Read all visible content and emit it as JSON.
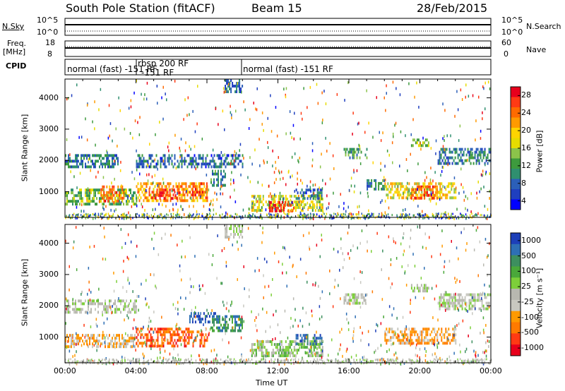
{
  "header": {
    "station": "South Pole Station (fitACF)",
    "beam": "Beam 15",
    "date": "28/Feb/2015"
  },
  "summary_panels": {
    "nsky_label": "N.Sky",
    "nsky_ticks": [
      "10^5",
      "10^0"
    ],
    "nsearch_label": "N.Search",
    "nsearch_ticks": [
      "10^5",
      "10^0"
    ],
    "freq_label": "Freq.",
    "freq_unit": "[MHz]",
    "freq_ticks": [
      "18",
      "8"
    ],
    "nave_label": "Nave",
    "nave_ticks": [
      "60",
      "0"
    ],
    "cpid_label": "CPID",
    "cpid_segments": [
      {
        "label": "normal (fast) -151 RF",
        "start": 0,
        "end": 4
      },
      {
        "label": "rbsp 200 RF",
        "start": 4,
        "end": 10
      },
      {
        "label": "normal (fast) -151 RF",
        "start": 10,
        "end": 24
      }
    ],
    "cpid_extra": "-151 RF"
  },
  "chart_data": [
    {
      "type": "heatmap",
      "title": "Power",
      "ylabel": "Slant Range [km]",
      "xlabel": "",
      "xlim": [
        0,
        24
      ],
      "ylim": [
        180,
        4600
      ],
      "yticks": [
        1000,
        2000,
        3000,
        4000
      ],
      "colorbar": {
        "label": "Power [dB]",
        "ticks": [
          "28",
          "24",
          "20",
          "16",
          "12",
          "8",
          "4"
        ],
        "colors": [
          "#e8001c",
          "#ff3a14",
          "#ff6a00",
          "#ff9a00",
          "#ffd400",
          "#e6dc00",
          "#8bc34a",
          "#3d9a3d",
          "#2f8f6f",
          "#2b5fb8",
          "#1f3fbf",
          "#0000ff"
        ]
      },
      "bands": [
        {
          "t0": 0.0,
          "t1": 3.0,
          "r0": 1800,
          "r1": 2200,
          "v": 7
        },
        {
          "t0": 0.0,
          "t1": 4.0,
          "r0": 600,
          "r1": 1100,
          "v": 12
        },
        {
          "t0": 2.0,
          "t1": 3.3,
          "r0": 700,
          "r1": 1200,
          "v": 24
        },
        {
          "t0": 4.0,
          "t1": 10.0,
          "r0": 1800,
          "r1": 2200,
          "v": 6
        },
        {
          "t0": 4.0,
          "t1": 8.0,
          "r0": 700,
          "r1": 1300,
          "v": 22
        },
        {
          "t0": 5.0,
          "t1": 6.5,
          "r0": 800,
          "r1": 1100,
          "v": 28
        },
        {
          "t0": 7.0,
          "t1": 8.0,
          "r0": 900,
          "r1": 1300,
          "v": 26
        },
        {
          "t0": 8.2,
          "t1": 9.0,
          "r0": 1200,
          "r1": 1700,
          "v": 8
        },
        {
          "t0": 9.0,
          "t1": 10.0,
          "r0": 4200,
          "r1": 4600,
          "v": 5
        },
        {
          "t0": 10.5,
          "t1": 14.5,
          "r0": 400,
          "r1": 900,
          "v": 16
        },
        {
          "t0": 11.5,
          "t1": 13.0,
          "r0": 400,
          "r1": 700,
          "v": 28
        },
        {
          "t0": 13.0,
          "t1": 14.5,
          "r0": 800,
          "r1": 1100,
          "v": 6
        },
        {
          "t0": 15.7,
          "t1": 17.0,
          "r0": 2100,
          "r1": 2400,
          "v": 10
        },
        {
          "t0": 17.0,
          "t1": 18.0,
          "r0": 1100,
          "r1": 1400,
          "v": 8
        },
        {
          "t0": 18.0,
          "t1": 22.0,
          "r0": 800,
          "r1": 1300,
          "v": 18
        },
        {
          "t0": 19.5,
          "t1": 21.0,
          "r0": 800,
          "r1": 1200,
          "v": 26
        },
        {
          "t0": 19.5,
          "t1": 20.5,
          "r0": 2500,
          "r1": 2700,
          "v": 12
        },
        {
          "t0": 21.0,
          "t1": 24.0,
          "r0": 1900,
          "r1": 2400,
          "v": 7
        }
      ]
    },
    {
      "type": "heatmap",
      "title": "Velocity",
      "ylabel": "Slant Range [km]",
      "xlabel": "Time UT",
      "xlim": [
        0,
        24
      ],
      "ylim": [
        180,
        4600
      ],
      "yticks": [
        1000,
        2000,
        3000,
        4000
      ],
      "xticks": [
        "00:00",
        "04:00",
        "08:00",
        "12:00",
        "16:00",
        "20:00",
        "00:00"
      ],
      "colorbar": {
        "label": "Velocity [m s⁻¹]",
        "ticks": [
          "1000",
          "500",
          "100",
          "25",
          "-25",
          "-100",
          "-500",
          "-1000"
        ],
        "colors": [
          "#1c3fb8",
          "#2e6fb5",
          "#3d8f5f",
          "#4aa83a",
          "#7dcf3a",
          "#b8b8b0",
          "#c8c8c0",
          "#ff9a00",
          "#ff7a00",
          "#ff3a14",
          "#e8001c"
        ]
      },
      "bands": [
        {
          "t0": 0.0,
          "t1": 4.0,
          "r0": 1800,
          "r1": 2200,
          "v": 0
        },
        {
          "t0": 0.0,
          "t1": 4.0,
          "r0": 700,
          "r1": 1100,
          "v": -300
        },
        {
          "t0": 4.0,
          "t1": 8.2,
          "r0": 700,
          "r1": 1300,
          "v": -700
        },
        {
          "t0": 8.2,
          "t1": 10.0,
          "r0": 1200,
          "r1": 1700,
          "v": 600
        },
        {
          "t0": 7.0,
          "t1": 8.5,
          "r0": 1500,
          "r1": 1800,
          "v": 900
        },
        {
          "t0": 9.0,
          "t1": 10.0,
          "r0": 4200,
          "r1": 4600,
          "v": 0
        },
        {
          "t0": 10.5,
          "t1": 14.5,
          "r0": 400,
          "r1": 900,
          "v": 150
        },
        {
          "t0": 13.0,
          "t1": 14.5,
          "r0": 800,
          "r1": 1100,
          "v": 800
        },
        {
          "t0": 15.7,
          "t1": 17.0,
          "r0": 2100,
          "r1": 2400,
          "v": 0
        },
        {
          "t0": 18.0,
          "t1": 22.0,
          "r0": 800,
          "r1": 1300,
          "v": -400
        },
        {
          "t0": 19.5,
          "t1": 20.5,
          "r0": 2500,
          "r1": 2700,
          "v": 60
        },
        {
          "t0": 21.0,
          "t1": 24.0,
          "r0": 1900,
          "r1": 2400,
          "v": 0
        }
      ]
    }
  ]
}
